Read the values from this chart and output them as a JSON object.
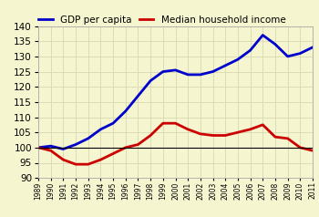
{
  "title": "",
  "background_color": "#f5f5d0",
  "gdp_label": "GDP per capita",
  "income_label": "Median household income",
  "gdp_color": "#0000cc",
  "income_color": "#cc0000",
  "baseline_color": "#000000",
  "years": [
    1989,
    1990,
    1991,
    1992,
    1993,
    1994,
    1995,
    1996,
    1997,
    1998,
    1999,
    2000,
    2001,
    2002,
    2003,
    2004,
    2005,
    2006,
    2007,
    2008,
    2009,
    2010,
    2011
  ],
  "gdp": [
    100,
    100.5,
    99.5,
    101,
    103,
    106,
    108,
    112,
    117,
    122,
    125,
    125.5,
    124,
    124,
    125,
    127,
    129,
    132,
    137,
    134,
    130,
    131,
    133
  ],
  "income": [
    100,
    99,
    96,
    94.5,
    94.5,
    96,
    98,
    100,
    101,
    104,
    108,
    108,
    106,
    104.5,
    104,
    104,
    105,
    106,
    107.5,
    103.5,
    103,
    100,
    99
  ],
  "ylim": [
    90,
    140
  ],
  "yticks": [
    90,
    95,
    100,
    105,
    110,
    115,
    120,
    125,
    130,
    135,
    140
  ],
  "xlim_start": 1989,
  "xlim_end": 2011,
  "grid_color": "#d8d8b0",
  "legend_fontsize": 7.5,
  "ytick_fontsize": 7.5,
  "xtick_fontsize": 5.5
}
